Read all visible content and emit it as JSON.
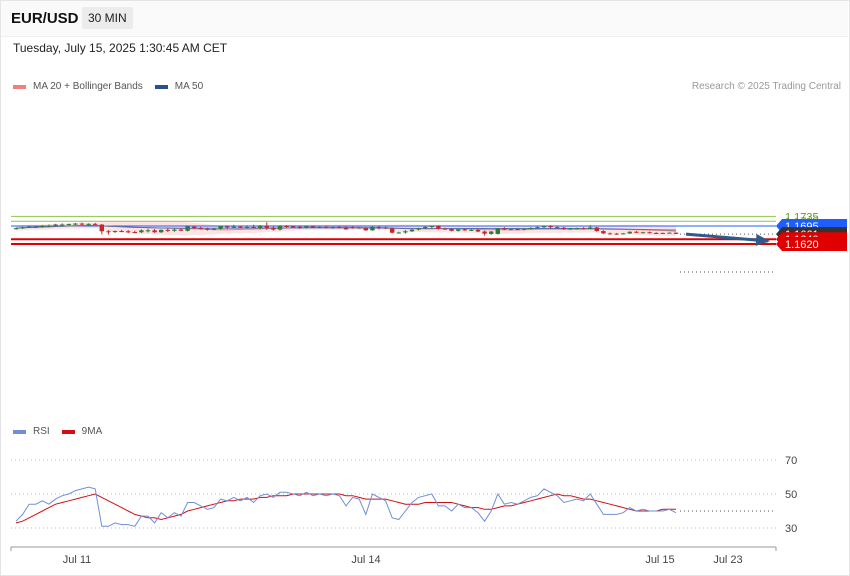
{
  "header": {
    "pair": "EUR/USD",
    "timeframe": "30 MIN"
  },
  "datetime": "Tuesday, July 15, 2025 1:30:45 AM CET",
  "credit": "Research © 2025 Trading Central",
  "colors": {
    "bullish": "#2e7d32",
    "bearish": "#c62828",
    "resistance": "#8bc34a",
    "pivot": "#1e5eff",
    "support": "#e00000",
    "band": "#fde3e3",
    "ma20": "#f08080",
    "ma50": "#5a72a8",
    "rsi": "#6f8fd8",
    "rsi_ma": "#d01010",
    "current": "#333333",
    "arrow": "#2f5a8a"
  },
  "chart_data": [
    {
      "type": "line",
      "subtype": "candlestick",
      "title": "EUR/USD",
      "legend": [
        "MA 20 + Bollinger Bands",
        "MA 50"
      ],
      "legend_position": "top-left",
      "x_labels": [
        "Jul 11",
        "Jul 14",
        "Jul 15",
        "Jul 23"
      ],
      "ylim": [
        1.1615,
        1.176
      ],
      "grid": false,
      "levels": [
        {
          "label": "1.1735",
          "value": 1.1735,
          "kind": "resistance"
        },
        {
          "label": "1.1715",
          "value": 1.1715,
          "kind": "resistance"
        },
        {
          "label": "1.1695",
          "value": 1.1695,
          "kind": "pivot"
        },
        {
          "label": "1.1661",
          "value": 1.1661,
          "kind": "current"
        },
        {
          "label": "1.1640",
          "value": 1.164,
          "kind": "support"
        },
        {
          "label": "1.1620",
          "value": 1.162,
          "kind": "support"
        }
      ],
      "candles": [
        [
          1.1683,
          1.1688,
          1.168,
          1.1686
        ],
        [
          1.1686,
          1.1692,
          1.1683,
          1.1689
        ],
        [
          1.1689,
          1.1695,
          1.1687,
          1.1692
        ],
        [
          1.1691,
          1.1695,
          1.1686,
          1.1692
        ],
        [
          1.1692,
          1.1699,
          1.1688,
          1.1695
        ],
        [
          1.1694,
          1.1701,
          1.169,
          1.1697
        ],
        [
          1.1697,
          1.1704,
          1.1694,
          1.1701
        ],
        [
          1.1701,
          1.1706,
          1.1697,
          1.1701
        ],
        [
          1.17,
          1.1705,
          1.1696,
          1.1703
        ],
        [
          1.1703,
          1.1708,
          1.1699,
          1.1705
        ],
        [
          1.1705,
          1.1709,
          1.1698,
          1.1701
        ],
        [
          1.1702,
          1.1706,
          1.1695,
          1.1704
        ],
        [
          1.1704,
          1.1708,
          1.17,
          1.1701
        ],
        [
          1.1701,
          1.1703,
          1.166,
          1.1673
        ],
        [
          1.1673,
          1.1678,
          1.1659,
          1.1671
        ],
        [
          1.1671,
          1.1676,
          1.1666,
          1.1674
        ],
        [
          1.1674,
          1.1679,
          1.1669,
          1.1673
        ],
        [
          1.1673,
          1.1678,
          1.1665,
          1.167
        ],
        [
          1.167,
          1.1675,
          1.1665,
          1.1669
        ],
        [
          1.1669,
          1.1681,
          1.1665,
          1.1677
        ],
        [
          1.1677,
          1.1684,
          1.1668,
          1.1677
        ],
        [
          1.1677,
          1.1682,
          1.1666,
          1.1669
        ],
        [
          1.1669,
          1.1681,
          1.1666,
          1.1679
        ],
        [
          1.1679,
          1.1685,
          1.167,
          1.1675
        ],
        [
          1.1675,
          1.1685,
          1.1671,
          1.168
        ],
        [
          1.168,
          1.1684,
          1.1674,
          1.1675
        ],
        [
          1.1675,
          1.1694,
          1.1672,
          1.1693
        ],
        [
          1.1692,
          1.1695,
          1.1683,
          1.1687
        ],
        [
          1.1687,
          1.1692,
          1.168,
          1.1684
        ],
        [
          1.1684,
          1.1688,
          1.1676,
          1.1681
        ],
        [
          1.1681,
          1.1687,
          1.1678,
          1.1683
        ],
        [
          1.1683,
          1.1696,
          1.168,
          1.1694
        ],
        [
          1.1694,
          1.1697,
          1.1682,
          1.169
        ],
        [
          1.169,
          1.17,
          1.1686,
          1.1692
        ],
        [
          1.1692,
          1.1695,
          1.1685,
          1.1689
        ],
        [
          1.1689,
          1.1698,
          1.1684,
          1.1691
        ],
        [
          1.1691,
          1.17,
          1.1686,
          1.1687
        ],
        [
          1.1687,
          1.1699,
          1.168,
          1.1694
        ],
        [
          1.1694,
          1.1711,
          1.1679,
          1.1688
        ],
        [
          1.1688,
          1.1695,
          1.1676,
          1.168
        ],
        [
          1.168,
          1.1698,
          1.1676,
          1.1695
        ],
        [
          1.1695,
          1.1699,
          1.1687,
          1.1693
        ],
        [
          1.1693,
          1.1696,
          1.1688,
          1.1692
        ],
        [
          1.1692,
          1.1697,
          1.1683,
          1.1689
        ],
        [
          1.1689,
          1.1695,
          1.1685,
          1.1693
        ],
        [
          1.1693,
          1.1697,
          1.1686,
          1.1688
        ],
        [
          1.1688,
          1.1693,
          1.1686,
          1.1691
        ],
        [
          1.1691,
          1.1696,
          1.1685,
          1.1688
        ],
        [
          1.1688,
          1.1692,
          1.1684,
          1.169
        ],
        [
          1.169,
          1.1694,
          1.1686,
          1.1689
        ],
        [
          1.1689,
          1.1692,
          1.168,
          1.1681
        ],
        [
          1.169,
          1.1693,
          1.1684,
          1.1689
        ],
        [
          1.1689,
          1.1691,
          1.1684,
          1.1686
        ],
        [
          1.1686,
          1.169,
          1.1675,
          1.1677
        ],
        [
          1.1677,
          1.1693,
          1.1675,
          1.1691
        ],
        [
          1.1691,
          1.1694,
          1.1681,
          1.1689
        ],
        [
          1.1689,
          1.1692,
          1.1683,
          1.1685
        ],
        [
          1.1685,
          1.1688,
          1.1664,
          1.1667
        ],
        [
          1.1667,
          1.1671,
          1.1663,
          1.1668
        ],
        [
          1.1668,
          1.1678,
          1.1663,
          1.1673
        ],
        [
          1.1673,
          1.1682,
          1.167,
          1.168
        ],
        [
          1.168,
          1.1688,
          1.1676,
          1.1686
        ],
        [
          1.1686,
          1.1694,
          1.1682,
          1.1691
        ],
        [
          1.1691,
          1.1697,
          1.1685,
          1.1695
        ],
        [
          1.1695,
          1.1698,
          1.168,
          1.1684
        ],
        [
          1.1684,
          1.1688,
          1.168,
          1.1683
        ],
        [
          1.1683,
          1.1686,
          1.1673,
          1.1675
        ],
        [
          1.1675,
          1.1683,
          1.1672,
          1.1681
        ],
        [
          1.1681,
          1.1684,
          1.1675,
          1.1677
        ],
        [
          1.1677,
          1.1682,
          1.1674,
          1.1679
        ],
        [
          1.1679,
          1.1683,
          1.167,
          1.1672
        ],
        [
          1.1672,
          1.1676,
          1.1655,
          1.1663
        ],
        [
          1.1662,
          1.1674,
          1.1658,
          1.1672
        ],
        [
          1.1662,
          1.1686,
          1.1659,
          1.1685
        ],
        [
          1.1685,
          1.169,
          1.1678,
          1.168
        ],
        [
          1.168,
          1.1684,
          1.1677,
          1.1682
        ],
        [
          1.1682,
          1.1685,
          1.1678,
          1.168
        ],
        [
          1.168,
          1.1686,
          1.1677,
          1.1684
        ],
        [
          1.1684,
          1.169,
          1.1681,
          1.1687
        ],
        [
          1.1687,
          1.1693,
          1.1684,
          1.169
        ],
        [
          1.169,
          1.1697,
          1.1686,
          1.1694
        ],
        [
          1.1694,
          1.1698,
          1.1686,
          1.169
        ],
        [
          1.169,
          1.1694,
          1.1684,
          1.1688
        ],
        [
          1.1688,
          1.1691,
          1.1679,
          1.1683
        ],
        [
          1.1683,
          1.1687,
          1.1679,
          1.1685
        ],
        [
          1.1685,
          1.1688,
          1.1681,
          1.1686
        ],
        [
          1.1686,
          1.169,
          1.1681,
          1.1684
        ],
        [
          1.1684,
          1.1699,
          1.1681,
          1.1689
        ],
        [
          1.1689,
          1.1691,
          1.1671,
          1.1674
        ],
        [
          1.1674,
          1.1677,
          1.1661,
          1.1664
        ],
        [
          1.1664,
          1.1668,
          1.166,
          1.1663
        ],
        [
          1.1663,
          1.1666,
          1.1659,
          1.1662
        ],
        [
          1.1663,
          1.1666,
          1.166,
          1.1664
        ],
        [
          1.1664,
          1.1673,
          1.1662,
          1.1671
        ],
        [
          1.1671,
          1.1674,
          1.1666,
          1.1667
        ],
        [
          1.1667,
          1.1671,
          1.1664,
          1.1669
        ],
        [
          1.1669,
          1.1672,
          1.1664,
          1.1666
        ],
        [
          1.1666,
          1.1669,
          1.1663,
          1.1665
        ],
        [
          1.1665,
          1.1668,
          1.1662,
          1.1666
        ],
        [
          1.1666,
          1.1669,
          1.1664,
          1.1667
        ],
        [
          1.1667,
          1.1669,
          1.1662,
          1.1662
        ]
      ],
      "forecast_arrow": {
        "from": 1.1661,
        "to": 1.162
      }
    },
    {
      "type": "line",
      "title": "RSI",
      "legend": [
        "RSI",
        "9MA"
      ],
      "legend_position": "top-left",
      "ylim": [
        20,
        80
      ],
      "gridlines": [
        {
          "label": "70",
          "value": 70
        },
        {
          "label": "50",
          "value": 50
        },
        {
          "label": "30",
          "value": 30
        }
      ],
      "series": [
        {
          "name": "RSI",
          "values": [
            34,
            38,
            44,
            44,
            46,
            44,
            47,
            49,
            50,
            52,
            53,
            54,
            53,
            31,
            31,
            33,
            32,
            32,
            31,
            37,
            37,
            33,
            39,
            36,
            39,
            37,
            45,
            45,
            43,
            41,
            42,
            47,
            46,
            48,
            46,
            48,
            45,
            49,
            50,
            48,
            51,
            51,
            50,
            49,
            51,
            49,
            50,
            49,
            50,
            49,
            43,
            48,
            47,
            38,
            50,
            48,
            46,
            36,
            35,
            40,
            45,
            48,
            49,
            50,
            43,
            43,
            40,
            44,
            42,
            42,
            39,
            34,
            40,
            50,
            44,
            45,
            44,
            46,
            48,
            49,
            53,
            51,
            49,
            45,
            46,
            47,
            46,
            50,
            44,
            38,
            38,
            38,
            39,
            42,
            40,
            41,
            40,
            40,
            40,
            41,
            39
          ]
        },
        {
          "name": "9MA",
          "values": [
            33,
            34,
            36,
            38,
            40,
            42,
            44,
            45,
            46,
            47,
            48,
            49,
            50,
            48,
            46,
            44,
            42,
            40,
            38,
            37,
            36,
            36,
            35,
            36,
            37,
            38,
            40,
            41,
            42,
            43,
            44,
            45,
            46,
            46,
            47,
            47,
            47,
            48,
            48,
            49,
            49,
            49,
            50,
            50,
            50,
            50,
            50,
            50,
            50,
            50,
            49,
            49,
            48,
            47,
            47,
            47,
            47,
            46,
            45,
            44,
            44,
            44,
            45,
            45,
            45,
            45,
            45,
            44,
            43,
            42,
            42,
            41,
            41,
            42,
            43,
            43,
            44,
            45,
            46,
            47,
            48,
            49,
            50,
            49,
            49,
            48,
            47,
            47,
            46,
            45,
            44,
            43,
            42,
            41,
            40,
            40,
            40,
            40,
            41,
            41,
            41
          ]
        }
      ]
    }
  ]
}
